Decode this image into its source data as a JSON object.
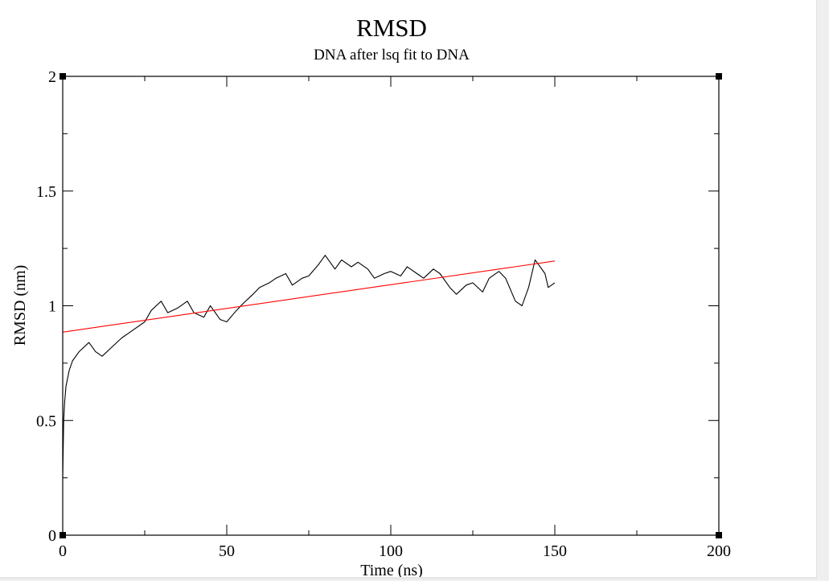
{
  "chart_data": {
    "type": "line",
    "title": "RMSD",
    "subtitle": "DNA after lsq fit to DNA",
    "xlabel": "Time (ns)",
    "ylabel": "RMSD (nm)",
    "xlim": [
      0,
      200
    ],
    "ylim": [
      0,
      2
    ],
    "xticks": [
      0,
      50,
      100,
      150,
      200
    ],
    "yticks": [
      0,
      0.5,
      1,
      1.5,
      2
    ],
    "grid": false,
    "legend": "none",
    "series": [
      {
        "color": "#000000",
        "x": [
          0,
          0.3,
          0.6,
          1,
          2,
          3,
          5,
          8,
          10,
          12,
          15,
          18,
          20,
          22,
          25,
          27,
          30,
          32,
          35,
          38,
          40,
          43,
          45,
          48,
          50,
          53,
          55,
          58,
          60,
          63,
          65,
          68,
          70,
          73,
          75,
          78,
          80,
          83,
          85,
          88,
          90,
          93,
          95,
          98,
          100,
          103,
          105,
          108,
          110,
          113,
          115,
          118,
          120,
          123,
          125,
          128,
          130,
          133,
          135,
          138,
          140,
          142,
          144,
          145,
          147,
          148,
          150
        ],
        "y": [
          0.25,
          0.5,
          0.58,
          0.65,
          0.72,
          0.76,
          0.8,
          0.84,
          0.8,
          0.78,
          0.82,
          0.86,
          0.88,
          0.9,
          0.93,
          0.98,
          1.02,
          0.97,
          0.99,
          1.02,
          0.97,
          0.95,
          1.0,
          0.94,
          0.93,
          0.98,
          1.01,
          1.05,
          1.08,
          1.1,
          1.12,
          1.14,
          1.09,
          1.12,
          1.13,
          1.18,
          1.22,
          1.16,
          1.2,
          1.17,
          1.19,
          1.16,
          1.12,
          1.14,
          1.15,
          1.13,
          1.17,
          1.14,
          1.12,
          1.16,
          1.14,
          1.08,
          1.05,
          1.09,
          1.1,
          1.06,
          1.12,
          1.15,
          1.12,
          1.02,
          1.0,
          1.08,
          1.2,
          1.18,
          1.14,
          1.08,
          1.1
        ]
      },
      {
        "color": "#ff0000",
        "x": [
          0,
          150
        ],
        "y": [
          0.885,
          1.195
        ]
      }
    ]
  }
}
